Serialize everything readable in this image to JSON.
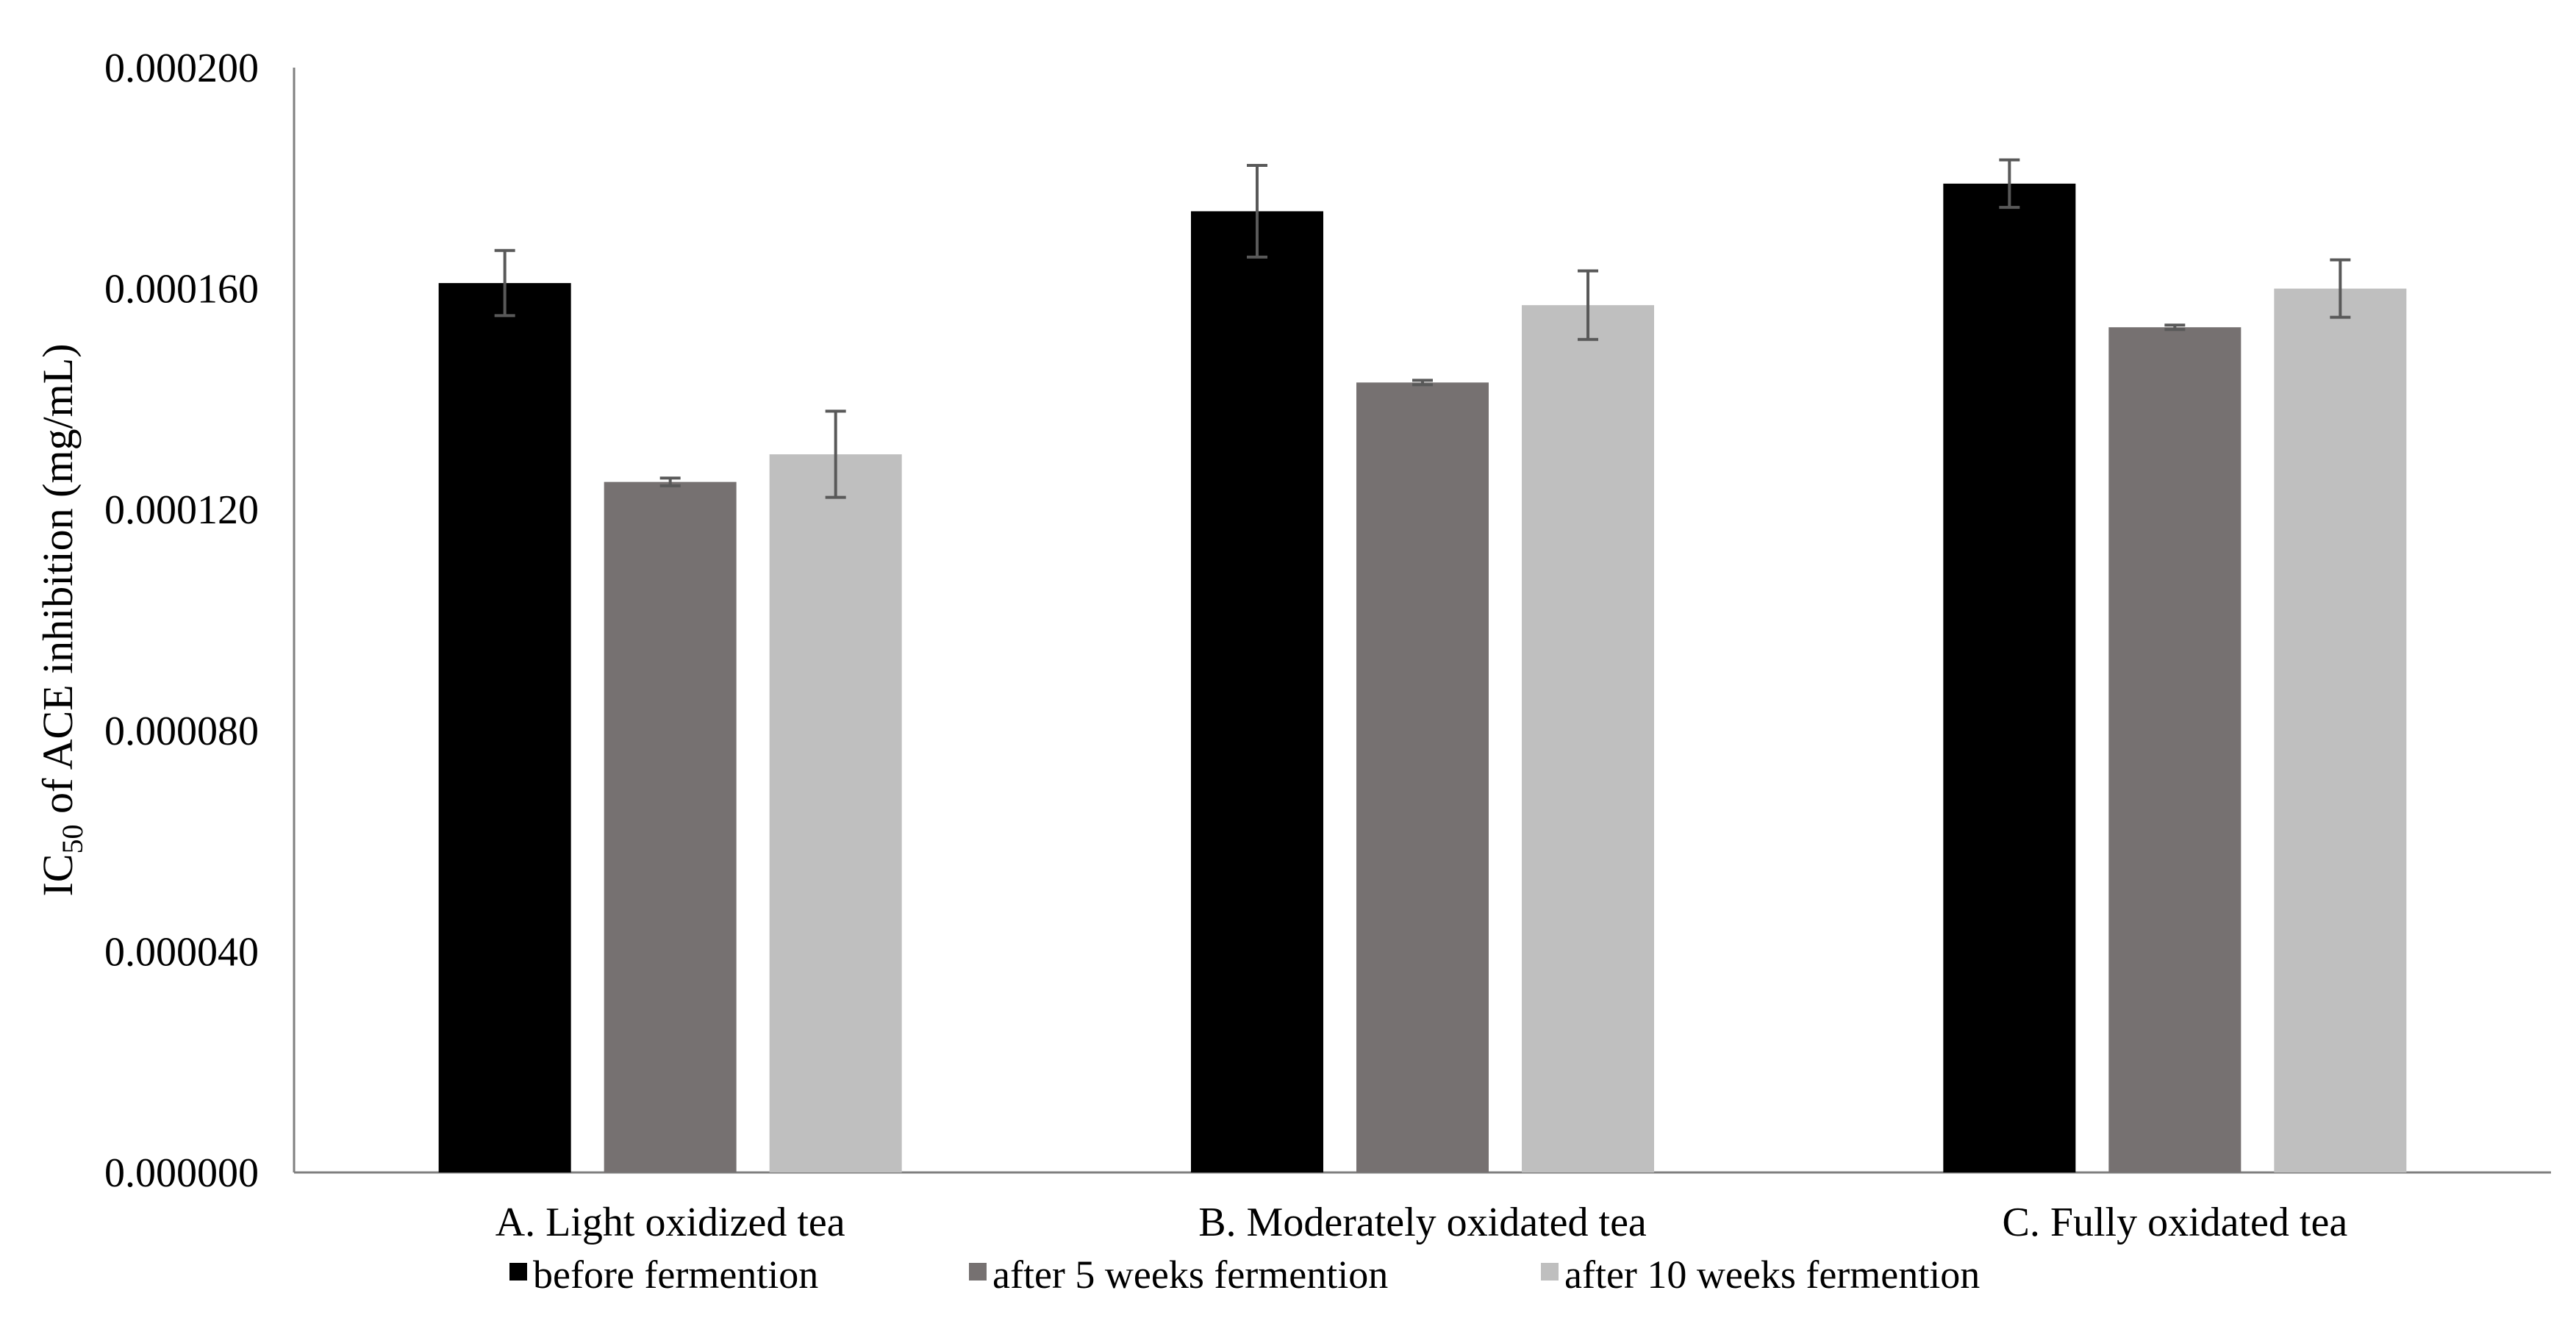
{
  "chart_data": {
    "type": "bar",
    "title": "",
    "xlabel": "",
    "ylabel": {
      "prefix": "IC",
      "subscript": "50",
      "suffix": " of ACE inhibition (mg/mL)"
    },
    "ylim": [
      0,
      0.0002
    ],
    "yticks": [
      0,
      4e-05,
      8e-05,
      0.00012,
      0.00016,
      0.0002
    ],
    "ytick_labels": [
      "0.000000",
      "0.000040",
      "0.000080",
      "0.000120",
      "0.000160",
      "0.000200"
    ],
    "grid": false,
    "legend_position": "bottom",
    "categories": [
      "A. Light oxidized tea",
      "B. Moderately oxidated tea",
      "C. Fully oxidated tea"
    ],
    "series": [
      {
        "name": "before fermention",
        "color": "#000000",
        "values": [
          0.000161,
          0.000174,
          0.000179
        ],
        "errors": [
          5.9e-06,
          8.3e-06,
          4.3e-06
        ]
      },
      {
        "name": "after 5 weeks fermention",
        "color": "#767171",
        "values": [
          0.000125,
          0.000143,
          0.000153
        ],
        "errors": [
          7e-07,
          4e-07,
          4e-07
        ]
      },
      {
        "name": "after 10 weeks fermention",
        "color": "#bfbfbf",
        "values": [
          0.00013,
          0.000157,
          0.00016
        ],
        "errors": [
          7.8e-06,
          6.2e-06,
          5.2e-06
        ]
      }
    ]
  }
}
